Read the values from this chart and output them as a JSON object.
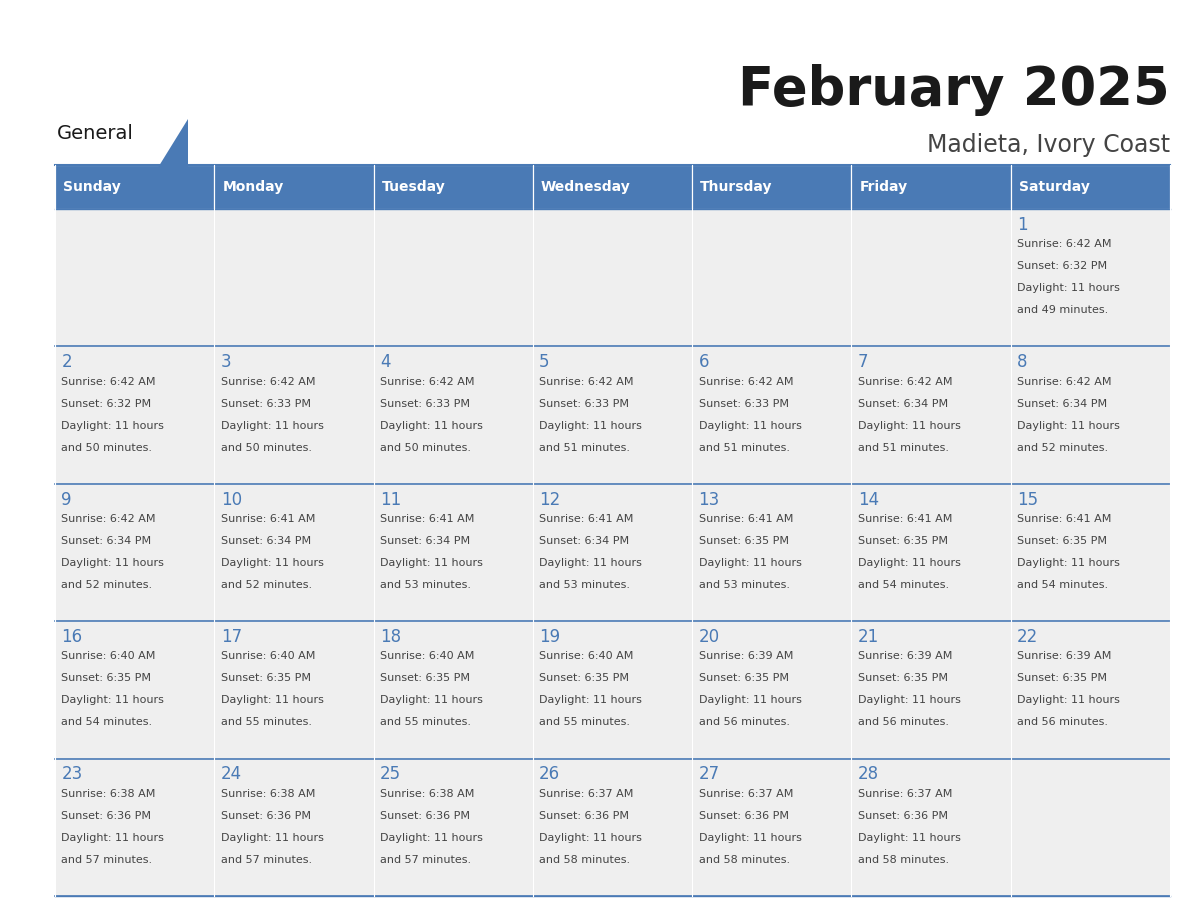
{
  "title": "February 2025",
  "subtitle": "Madieta, Ivory Coast",
  "days_of_week": [
    "Sunday",
    "Monday",
    "Tuesday",
    "Wednesday",
    "Thursday",
    "Friday",
    "Saturday"
  ],
  "header_bg": "#4a7ab5",
  "header_text": "#FFFFFF",
  "cell_bg": "#EFEFEF",
  "cell_bg_empty_top": "#F5F5F5",
  "day_number_color": "#4a7ab5",
  "text_color": "#444444",
  "border_color": "#4a7ab5",
  "logo_general_color": "#1a1a1a",
  "logo_blue_color": "#4a7ab5",
  "calendar_data": [
    [
      {
        "day": null,
        "sunrise": null,
        "sunset": null,
        "daylight": null
      },
      {
        "day": null,
        "sunrise": null,
        "sunset": null,
        "daylight": null
      },
      {
        "day": null,
        "sunrise": null,
        "sunset": null,
        "daylight": null
      },
      {
        "day": null,
        "sunrise": null,
        "sunset": null,
        "daylight": null
      },
      {
        "day": null,
        "sunrise": null,
        "sunset": null,
        "daylight": null
      },
      {
        "day": null,
        "sunrise": null,
        "sunset": null,
        "daylight": null
      },
      {
        "day": 1,
        "sunrise": "6:42 AM",
        "sunset": "6:32 PM",
        "daylight": "11 hours\nand 49 minutes."
      }
    ],
    [
      {
        "day": 2,
        "sunrise": "6:42 AM",
        "sunset": "6:32 PM",
        "daylight": "11 hours\nand 50 minutes."
      },
      {
        "day": 3,
        "sunrise": "6:42 AM",
        "sunset": "6:33 PM",
        "daylight": "11 hours\nand 50 minutes."
      },
      {
        "day": 4,
        "sunrise": "6:42 AM",
        "sunset": "6:33 PM",
        "daylight": "11 hours\nand 50 minutes."
      },
      {
        "day": 5,
        "sunrise": "6:42 AM",
        "sunset": "6:33 PM",
        "daylight": "11 hours\nand 51 minutes."
      },
      {
        "day": 6,
        "sunrise": "6:42 AM",
        "sunset": "6:33 PM",
        "daylight": "11 hours\nand 51 minutes."
      },
      {
        "day": 7,
        "sunrise": "6:42 AM",
        "sunset": "6:34 PM",
        "daylight": "11 hours\nand 51 minutes."
      },
      {
        "day": 8,
        "sunrise": "6:42 AM",
        "sunset": "6:34 PM",
        "daylight": "11 hours\nand 52 minutes."
      }
    ],
    [
      {
        "day": 9,
        "sunrise": "6:42 AM",
        "sunset": "6:34 PM",
        "daylight": "11 hours\nand 52 minutes."
      },
      {
        "day": 10,
        "sunrise": "6:41 AM",
        "sunset": "6:34 PM",
        "daylight": "11 hours\nand 52 minutes."
      },
      {
        "day": 11,
        "sunrise": "6:41 AM",
        "sunset": "6:34 PM",
        "daylight": "11 hours\nand 53 minutes."
      },
      {
        "day": 12,
        "sunrise": "6:41 AM",
        "sunset": "6:34 PM",
        "daylight": "11 hours\nand 53 minutes."
      },
      {
        "day": 13,
        "sunrise": "6:41 AM",
        "sunset": "6:35 PM",
        "daylight": "11 hours\nand 53 minutes."
      },
      {
        "day": 14,
        "sunrise": "6:41 AM",
        "sunset": "6:35 PM",
        "daylight": "11 hours\nand 54 minutes."
      },
      {
        "day": 15,
        "sunrise": "6:41 AM",
        "sunset": "6:35 PM",
        "daylight": "11 hours\nand 54 minutes."
      }
    ],
    [
      {
        "day": 16,
        "sunrise": "6:40 AM",
        "sunset": "6:35 PM",
        "daylight": "11 hours\nand 54 minutes."
      },
      {
        "day": 17,
        "sunrise": "6:40 AM",
        "sunset": "6:35 PM",
        "daylight": "11 hours\nand 55 minutes."
      },
      {
        "day": 18,
        "sunrise": "6:40 AM",
        "sunset": "6:35 PM",
        "daylight": "11 hours\nand 55 minutes."
      },
      {
        "day": 19,
        "sunrise": "6:40 AM",
        "sunset": "6:35 PM",
        "daylight": "11 hours\nand 55 minutes."
      },
      {
        "day": 20,
        "sunrise": "6:39 AM",
        "sunset": "6:35 PM",
        "daylight": "11 hours\nand 56 minutes."
      },
      {
        "day": 21,
        "sunrise": "6:39 AM",
        "sunset": "6:35 PM",
        "daylight": "11 hours\nand 56 minutes."
      },
      {
        "day": 22,
        "sunrise": "6:39 AM",
        "sunset": "6:35 PM",
        "daylight": "11 hours\nand 56 minutes."
      }
    ],
    [
      {
        "day": 23,
        "sunrise": "6:38 AM",
        "sunset": "6:36 PM",
        "daylight": "11 hours\nand 57 minutes."
      },
      {
        "day": 24,
        "sunrise": "6:38 AM",
        "sunset": "6:36 PM",
        "daylight": "11 hours\nand 57 minutes."
      },
      {
        "day": 25,
        "sunrise": "6:38 AM",
        "sunset": "6:36 PM",
        "daylight": "11 hours\nand 57 minutes."
      },
      {
        "day": 26,
        "sunrise": "6:37 AM",
        "sunset": "6:36 PM",
        "daylight": "11 hours\nand 58 minutes."
      },
      {
        "day": 27,
        "sunrise": "6:37 AM",
        "sunset": "6:36 PM",
        "daylight": "11 hours\nand 58 minutes."
      },
      {
        "day": 28,
        "sunrise": "6:37 AM",
        "sunset": "6:36 PM",
        "daylight": "11 hours\nand 58 minutes."
      },
      {
        "day": null,
        "sunrise": null,
        "sunset": null,
        "daylight": null
      }
    ]
  ]
}
